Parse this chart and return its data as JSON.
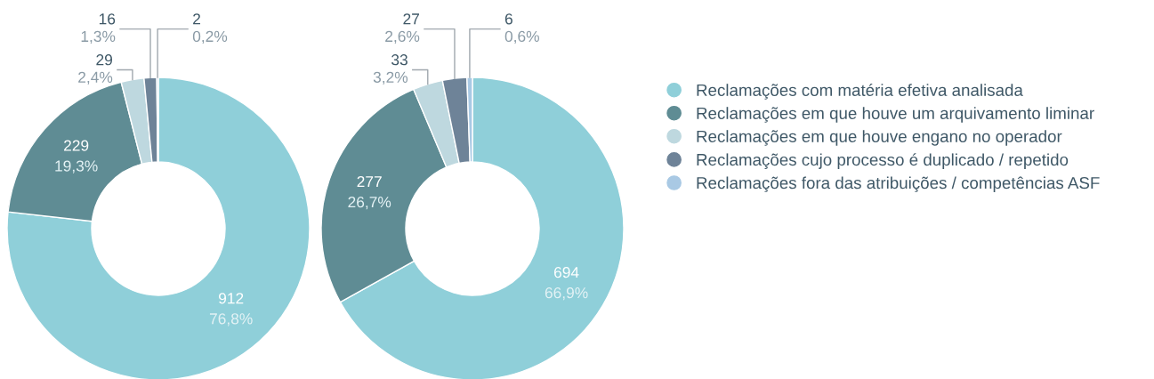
{
  "chart_data": [
    {
      "type": "donut",
      "categories": [
        "Reclamações com matéria efetiva analisada",
        "Reclamações em que houve um arquivamento liminar",
        "Reclamações em que houve engano no operador",
        "Reclamações cujo processo é duplicado / repetido",
        "Reclamações fora das atribuições / competências ASF"
      ],
      "values": [
        912,
        229,
        29,
        16,
        2
      ],
      "value_labels": [
        "912\n76,8%",
        "229\n19,3%",
        "29\n2,4%",
        "16\n1,3%",
        "2\n0,2%"
      ],
      "colors": [
        "#8fcfd9",
        "#5f8c94",
        "#bed8df",
        "#6e8398",
        "#a9c9e4"
      ],
      "legend": "right"
    },
    {
      "type": "donut",
      "categories": [
        null,
        null,
        null,
        null,
        null
      ],
      "values": [
        694,
        277,
        33,
        27,
        6
      ],
      "value_labels": [
        "694\n66,9%",
        "277\n26,7%",
        "33\n3,2%",
        "27\n2,6%",
        "6\n0,6%"
      ],
      "colors": [
        "#8fcfd9",
        "#5f8c94",
        "#bed8df",
        "#6e8398",
        "#a9c9e4"
      ]
    }
  ]
}
